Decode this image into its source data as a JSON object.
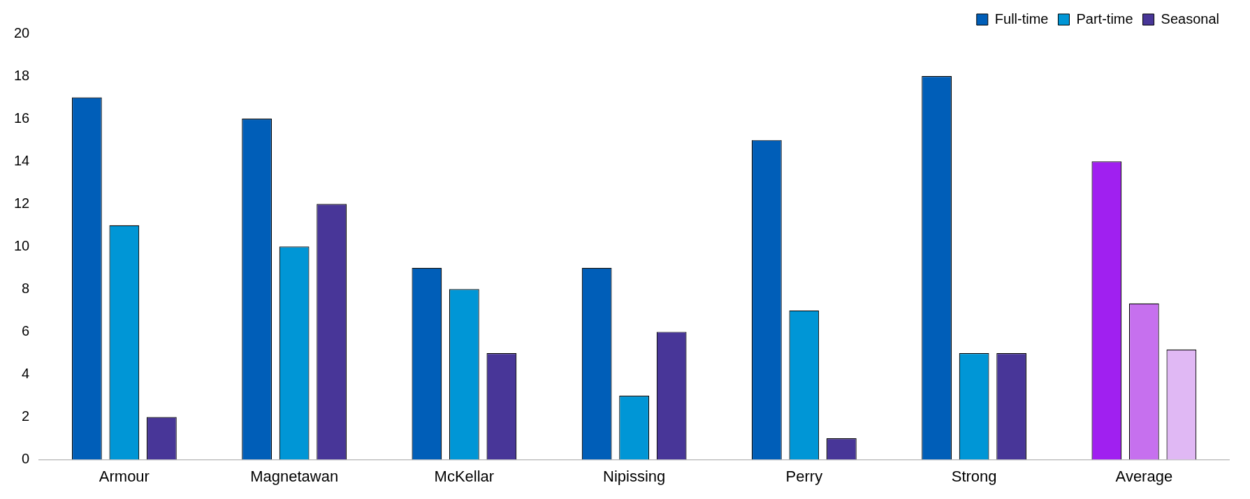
{
  "chart_data": {
    "type": "bar",
    "categories": [
      "Armour",
      "Magnetawan",
      "McKellar",
      "Nipissing",
      "Perry",
      "Strong",
      "Average"
    ],
    "series": [
      {
        "name": "Full-time",
        "color": "#005eb8",
        "colors": [
          "#005eb8",
          "#005eb8",
          "#005eb8",
          "#005eb8",
          "#005eb8",
          "#005eb8",
          "#a020f0"
        ],
        "values": [
          17,
          16,
          9,
          9,
          15,
          18,
          14
        ]
      },
      {
        "name": "Part-time",
        "color": "#0096d6",
        "colors": [
          "#0096d6",
          "#0096d6",
          "#0096d6",
          "#0096d6",
          "#0096d6",
          "#0096d6",
          "#c670ee"
        ],
        "values": [
          11,
          10,
          8,
          3,
          7,
          5,
          7.33
        ]
      },
      {
        "name": "Seasonal",
        "color": "#483698",
        "colors": [
          "#483698",
          "#483698",
          "#483698",
          "#483698",
          "#483698",
          "#483698",
          "#e0b8f4"
        ],
        "values": [
          2,
          12,
          5,
          6,
          1,
          5,
          5.17
        ]
      }
    ],
    "ylim": [
      0,
      20
    ],
    "yticks": [
      0,
      2,
      4,
      6,
      8,
      10,
      12,
      14,
      16,
      18,
      20
    ],
    "grid": false,
    "legend": "top right"
  }
}
